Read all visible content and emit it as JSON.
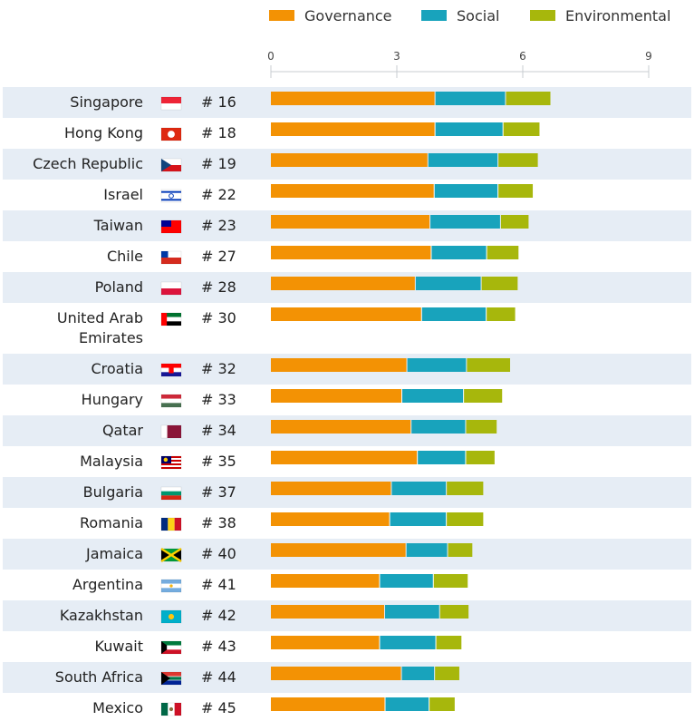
{
  "chart_data": {
    "type": "bar",
    "stacked": true,
    "orientation": "horizontal",
    "title": "",
    "xlabel": "",
    "ylabel": "",
    "xlim": [
      0,
      9
    ],
    "ticks": [
      0,
      3,
      6,
      9
    ],
    "grid": true,
    "legend_position": "top",
    "categories": [
      "Singapore",
      "Hong Kong",
      "Czech Republic",
      "Israel",
      "Taiwan",
      "Chile",
      "Poland",
      "United Arab Emirates",
      "Croatia",
      "Hungary",
      "Qatar",
      "Malaysia",
      "Bulgaria",
      "Romania",
      "Jamaica",
      "Argentina",
      "Kazakhstan",
      "Kuwait",
      "South Africa",
      "Mexico"
    ],
    "ranks": [
      "# 16",
      "# 18",
      "# 19",
      "# 22",
      "# 23",
      "# 27",
      "# 28",
      "# 30",
      "# 32",
      "# 33",
      "# 34",
      "# 35",
      "# 37",
      "# 38",
      "# 40",
      "# 41",
      "# 42",
      "# 43",
      "# 44",
      "# 45"
    ],
    "flags": [
      "singapore-flag",
      "hong-kong-flag",
      "czech-flag",
      "israel-flag",
      "taiwan-flag",
      "chile-flag",
      "poland-flag",
      "uae-flag",
      "croatia-flag",
      "hungary-flag",
      "qatar-flag",
      "malaysia-flag",
      "bulgaria-flag",
      "romania-flag",
      "jamaica-flag",
      "argentina-flag",
      "kazakhstan-flag",
      "kuwait-flag",
      "south-africa-flag",
      "mexico-flag"
    ],
    "series": [
      {
        "name": "Governance",
        "color": "#F39204",
        "values": [
          3.92,
          3.92,
          3.75,
          3.9,
          3.8,
          3.83,
          3.45,
          3.6,
          3.25,
          3.13,
          3.35,
          3.5,
          2.88,
          2.84,
          3.23,
          2.6,
          2.72,
          2.6,
          3.12,
          2.73
        ]
      },
      {
        "name": "Social",
        "color": "#18A3BC",
        "values": [
          1.68,
          1.62,
          1.67,
          1.52,
          1.68,
          1.32,
          1.57,
          1.54,
          1.42,
          1.47,
          1.3,
          1.15,
          1.31,
          1.35,
          0.99,
          1.28,
          1.31,
          1.34,
          0.79,
          1.05
        ]
      },
      {
        "name": "Environmental",
        "color": "#A7B70C",
        "values": [
          1.08,
          0.88,
          0.96,
          0.84,
          0.68,
          0.77,
          0.88,
          0.7,
          1.05,
          0.93,
          0.75,
          0.7,
          0.89,
          0.89,
          0.6,
          0.83,
          0.7,
          0.62,
          0.6,
          0.62
        ]
      }
    ]
  }
}
